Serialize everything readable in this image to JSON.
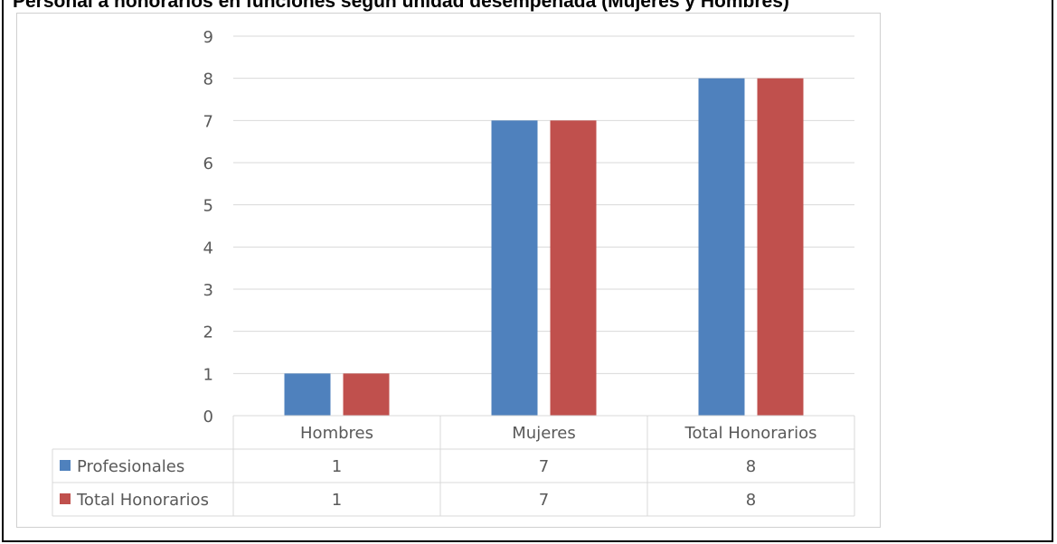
{
  "page": {
    "title": "Personal a honorarios en funciones según unidad desempeñada (Mujeres y Hombres)"
  },
  "chart_data": {
    "type": "bar",
    "title": "",
    "xlabel": "",
    "ylabel": "",
    "categories": [
      "Hombres",
      "Mujeres",
      "Total Honorarios"
    ],
    "series": [
      {
        "name": "Profesionales",
        "values": [
          1,
          7,
          8
        ],
        "color": "#4f81bd"
      },
      {
        "name": "Total Honorarios",
        "values": [
          1,
          7,
          8
        ],
        "color": "#c0504d"
      }
    ],
    "ylim": [
      0,
      9
    ],
    "yticks": [
      "0",
      "1",
      "2",
      "3",
      "4",
      "5",
      "6",
      "7",
      "8",
      "9"
    ],
    "grid": true,
    "legend": "data-table-below"
  }
}
